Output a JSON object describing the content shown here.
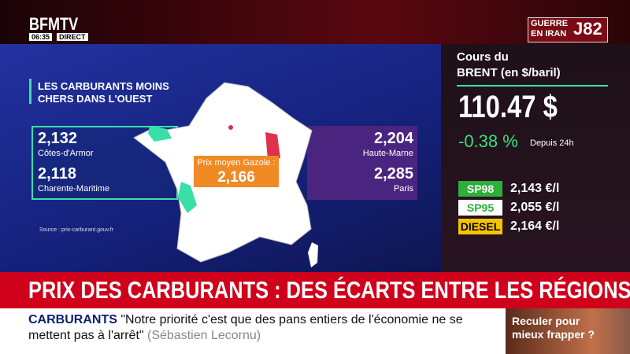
{
  "header": {
    "logo": "BFMTV",
    "time": "06:35",
    "live": "DIRECT",
    "tag": "GUERRE EN IRAN",
    "tag_day": "J82"
  },
  "panel": {
    "title": "LES CARBURANTS MOINS CHERS DANS L'OUEST",
    "cheapest": [
      {
        "price": "2,132",
        "region": "Côtes-d'Armor"
      },
      {
        "price": "2,118",
        "region": "Charente-Maritime"
      }
    ],
    "average": {
      "label": "Prix moyen Gazole :",
      "price": "2,166"
    },
    "most_expensive": [
      {
        "price": "2,204",
        "region": "Haute-Marne"
      },
      {
        "price": "2,285",
        "region": "Paris"
      }
    ],
    "source": "Source : prix-carburant.gouv.fr"
  },
  "brent": {
    "title_line1": "Cours du",
    "title_line2": "BRENT (en $/baril)",
    "price": "110.47 $",
    "change": "-0.38 %",
    "period": "Depuis 24h"
  },
  "fuels": [
    {
      "name": "SP98",
      "price": "2,143 €/l"
    },
    {
      "name": "SP95",
      "price": "2,055 €/l"
    },
    {
      "name": "DIESEL",
      "price": "2,164 €/l"
    }
  ],
  "headline": "PRIX DES CARBURANTS : DES ÉCARTS ENTRE LES RÉGIONS",
  "ticker": {
    "topic": "CARBURANTS",
    "quote": "\"Notre priorité c'est que des pans entiers de l'économie ne se mettent pas à l'arrêt\"",
    "author": "(Sébastien Lecornu)"
  },
  "promo": {
    "text": "Reculer pour mieux frapper ?"
  }
}
